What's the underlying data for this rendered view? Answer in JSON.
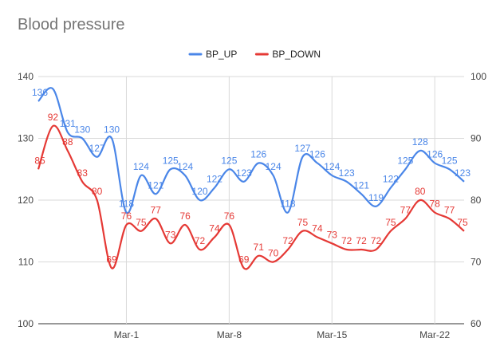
{
  "chart_data": {
    "type": "line",
    "title": "Blood pressure",
    "xlabel": "",
    "ylabel": "",
    "x_ticks": [
      {
        "day": 6,
        "label": "Mar-1"
      },
      {
        "day": 13,
        "label": "Mar-8"
      },
      {
        "day": 20,
        "label": "Mar-15"
      },
      {
        "day": 27,
        "label": "Mar-22"
      }
    ],
    "x_range": [
      0,
      29
    ],
    "y_left": {
      "min": 100,
      "max": 140,
      "ticks": [
        100,
        110,
        120,
        130,
        140
      ]
    },
    "y_right": {
      "min": 60,
      "max": 100,
      "ticks": [
        60,
        70,
        80,
        90,
        100
      ]
    },
    "grid": true,
    "legend": "top-center",
    "series": [
      {
        "name": "BP_UP",
        "axis": "left",
        "color": "#4a86e8",
        "x": [
          0,
          1,
          2,
          3,
          4,
          5,
          6,
          7,
          8,
          9,
          10,
          11,
          12,
          13,
          14,
          15,
          16,
          17,
          18,
          19,
          20,
          21,
          22,
          23,
          24,
          25,
          26,
          27,
          28,
          29
        ],
        "values": [
          136,
          138,
          131,
          130,
          127,
          130,
          118,
          124,
          121,
          125,
          124,
          120,
          122,
          125,
          123,
          126,
          124,
          118,
          127,
          126,
          124,
          123,
          121,
          119,
          122,
          125,
          128,
          126,
          125,
          123
        ],
        "labels": [
          136,
          null,
          131,
          130,
          127,
          130,
          118,
          124,
          121,
          125,
          124,
          120,
          122,
          125,
          123,
          126,
          124,
          118,
          127,
          126,
          124,
          123,
          121,
          119,
          122,
          125,
          128,
          126,
          125,
          123
        ]
      },
      {
        "name": "BP_DOWN",
        "axis": "right",
        "color": "#e53935",
        "x": [
          0,
          1,
          2,
          3,
          4,
          5,
          6,
          7,
          8,
          9,
          10,
          11,
          12,
          13,
          14,
          15,
          16,
          17,
          18,
          19,
          20,
          21,
          22,
          23,
          24,
          25,
          26,
          27,
          28,
          29
        ],
        "values": [
          85,
          92,
          88,
          83,
          80,
          69,
          76,
          75,
          77,
          73,
          76,
          72,
          74,
          76,
          69,
          71,
          70,
          72,
          75,
          74,
          73,
          72,
          72,
          72,
          75,
          77,
          80,
          78,
          77,
          75
        ],
        "labels": [
          85,
          92,
          88,
          83,
          80,
          69,
          76,
          75,
          77,
          73,
          76,
          72,
          74,
          76,
          69,
          71,
          70,
          72,
          75,
          74,
          73,
          72,
          72,
          72,
          75,
          77,
          80,
          78,
          77,
          75
        ]
      }
    ]
  }
}
